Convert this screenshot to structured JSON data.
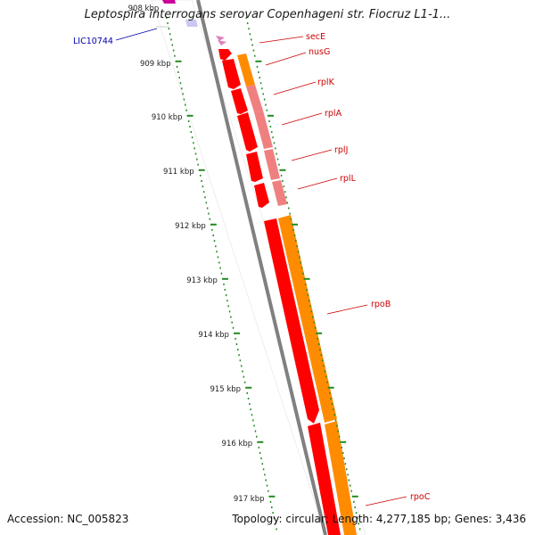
{
  "map": {
    "title": "Leptospira interrogans serovar Copenhageni str. Fiocruz L1-1...",
    "accession": "Accession: NC_005823",
    "summary": "Topology: circular; Length: 4,277,185 bp; Genes: 3,436",
    "callout": "LIC10744",
    "ticks": [
      {
        "label": "908 kbp",
        "faded": true
      },
      {
        "label": "909 kbp"
      },
      {
        "label": "910 kbp"
      },
      {
        "label": "911 kbp"
      },
      {
        "label": "912 kbp"
      },
      {
        "label": "913 kbp"
      },
      {
        "label": "914 kbp"
      },
      {
        "label": "915 kbp"
      },
      {
        "label": "916 kbp"
      },
      {
        "label": "917 kbp"
      }
    ],
    "genes": [
      {
        "name": "secE"
      },
      {
        "name": "nusG"
      },
      {
        "name": "rplK"
      },
      {
        "name": "rplA"
      },
      {
        "name": "rplJ"
      },
      {
        "name": "rplL"
      },
      {
        "name": "rpoB"
      },
      {
        "name": "rpoC"
      }
    ],
    "colors": {
      "cds": "#ff0000",
      "gene": "#ff8c00",
      "rna": "#f08080",
      "magenta_feature": "#cc0099",
      "callout_line": "#0000aa",
      "backbone": "#808080",
      "tick_color": "#228b22",
      "gene_label": "#cc0000"
    }
  }
}
